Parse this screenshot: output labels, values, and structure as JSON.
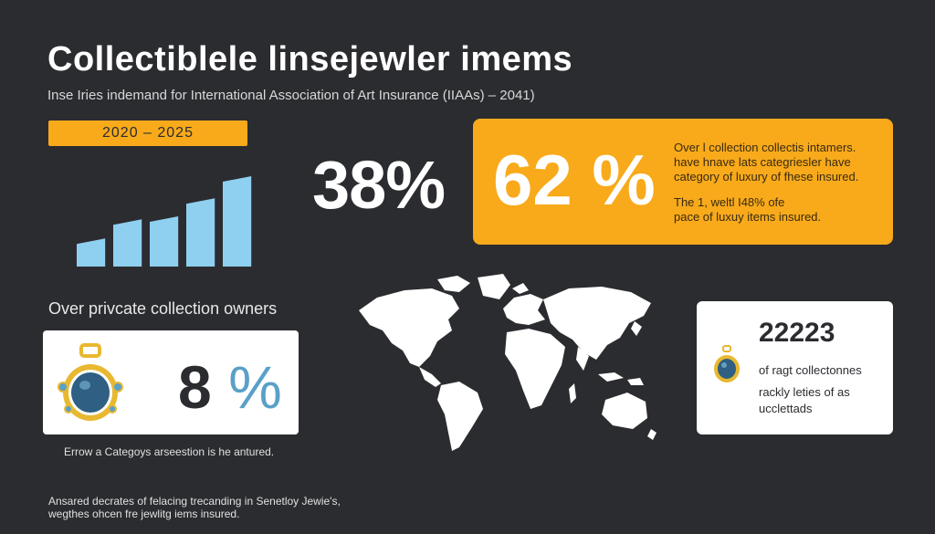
{
  "header": {
    "title": "Collectiblele linsejewler imems",
    "subtitle": "Inse Iries indemand for International Association of Art Insurance (IIAAs) – 2041)"
  },
  "timeline": {
    "years_label": "2020   –   2025",
    "bar_values": [
      0.28,
      0.47,
      0.5,
      0.68,
      0.9
    ],
    "bar_color": "#8fd0f0"
  },
  "stats": {
    "stat_38": "38%",
    "stat_62": "62 %",
    "orange_card": {
      "lines": [
        "Over l collection collectis intamers.",
        "have hnave lats categriesler have",
        "category of luxury of fhese insured."
      ],
      "lines_b": [
        "The 1, weltl I48% ofe",
        "pace of luxuy items insured."
      ]
    }
  },
  "left": {
    "label": "Over privcate collection owners",
    "stat_value": "8",
    "stat_pct": "%",
    "caption": "Errow a Categoys arseestion is he antured."
  },
  "right_card": {
    "number": "22223",
    "line1": "of ragt collectonnes",
    "line2": "rackly leties of as",
    "line3": "ucclettads"
  },
  "footer": {
    "line1": "Ansared decrates of felacing trecanding in Senetloy Jewie's,",
    "line2": "wegthes ohcen fre jewlitg iems insured."
  },
  "colors": {
    "background": "#2b2c30",
    "accent": "#f8aa1b",
    "card": "#ffffff",
    "gem_blue": "#5aa0c8",
    "gold": "#e8b830"
  },
  "icons": {
    "map": "world-map-icon",
    "gem": "gem-pendant-icon",
    "bars": "bar-chart-icon"
  }
}
